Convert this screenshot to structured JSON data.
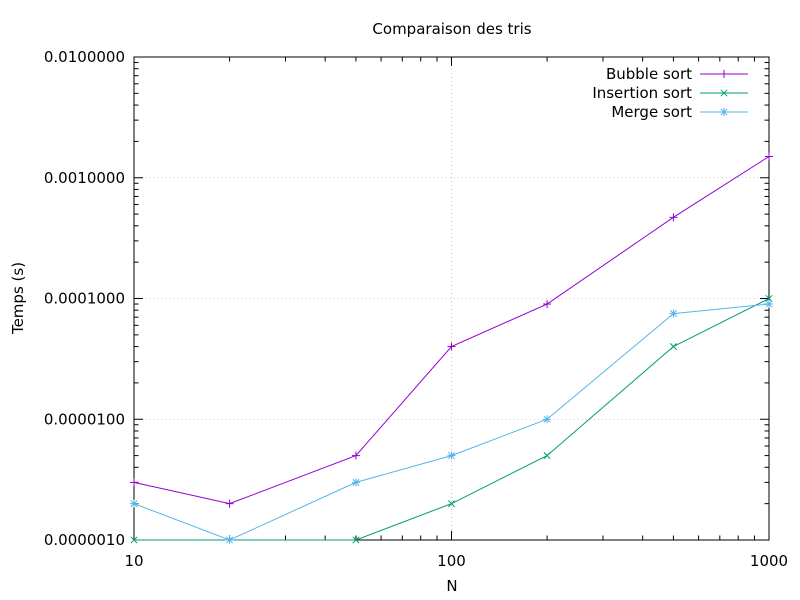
{
  "chart_data": {
    "type": "line",
    "title": "Comparaison des tris",
    "xlabel": "N",
    "ylabel": "Temps (s)",
    "xscale": "log",
    "yscale": "log",
    "xlim": [
      10,
      1000
    ],
    "ylim": [
      1e-06,
      0.01
    ],
    "xticks": [
      10,
      100,
      1000
    ],
    "xtick_labels": [
      "10",
      "100",
      "1000"
    ],
    "yticks": [
      1e-06,
      1e-05,
      0.0001,
      0.001,
      0.01
    ],
    "ytick_labels": [
      "0.0000010",
      "0.0000100",
      "0.0001000",
      "0.0010000",
      "0.0100000"
    ],
    "grid": true,
    "legend_position": "top-right",
    "series": [
      {
        "name": "Bubble sort",
        "color": "#9400d3",
        "marker": "plus",
        "points": [
          {
            "x": 10,
            "y": 3e-06
          },
          {
            "x": 20,
            "y": 2e-06
          },
          {
            "x": 50,
            "y": 5e-06
          },
          {
            "x": 100,
            "y": 4e-05
          },
          {
            "x": 200,
            "y": 9e-05
          },
          {
            "x": 500,
            "y": 0.00047
          },
          {
            "x": 1000,
            "y": 0.0015
          }
        ]
      },
      {
        "name": "Insertion sort",
        "color": "#009e73",
        "marker": "cross",
        "points": [
          {
            "x": 10,
            "y": 1e-06
          },
          {
            "x": 50,
            "y": 1e-06
          },
          {
            "x": 100,
            "y": 2e-06
          },
          {
            "x": 200,
            "y": 5e-06
          },
          {
            "x": 500,
            "y": 4e-05
          },
          {
            "x": 1000,
            "y": 0.0001
          }
        ]
      },
      {
        "name": "Merge sort",
        "color": "#56b4e9",
        "marker": "star",
        "points": [
          {
            "x": 10,
            "y": 2e-06
          },
          {
            "x": 20,
            "y": 1e-06
          },
          {
            "x": 50,
            "y": 3e-06
          },
          {
            "x": 100,
            "y": 5e-06
          },
          {
            "x": 200,
            "y": 1e-05
          },
          {
            "x": 500,
            "y": 7.5e-05
          },
          {
            "x": 1000,
            "y": 9e-05
          }
        ]
      }
    ]
  }
}
